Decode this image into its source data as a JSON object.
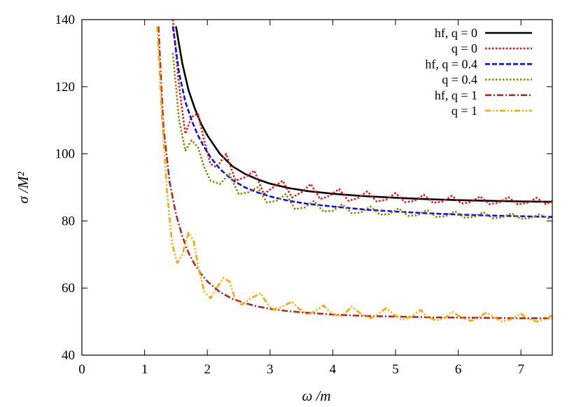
{
  "chart_data": {
    "type": "line",
    "title": "",
    "xlabel": "ω /m",
    "ylabel": "σ /M²",
    "xlim": [
      0,
      7.5
    ],
    "ylim": [
      40,
      140
    ],
    "xticks": [
      0,
      1,
      2,
      3,
      4,
      5,
      6,
      7
    ],
    "xtick_labels": [
      "0",
      "1",
      "2",
      "3",
      "4",
      "5",
      "6",
      "7"
    ],
    "yticks": [
      40,
      60,
      80,
      100,
      120,
      140
    ],
    "ytick_labels": [
      "40",
      "60",
      "80",
      "100",
      "120",
      "140"
    ],
    "grid": false,
    "legend_position": "top-right",
    "series": [
      {
        "name": "hf, q = 0",
        "color": "#000000",
        "style": "solid",
        "x": [
          1.5,
          1.6,
          1.7,
          1.8,
          1.9,
          2.0,
          2.2,
          2.4,
          2.6,
          2.8,
          3.0,
          3.3,
          3.6,
          4.0,
          4.5,
          5.0,
          5.5,
          6.0,
          6.5,
          7.0,
          7.5
        ],
        "y": [
          138,
          127,
          119,
          113.5,
          109,
          105.5,
          100,
          96.3,
          94,
          92.4,
          91.1,
          89.8,
          88.9,
          88.1,
          87.4,
          86.9,
          86.5,
          86.2,
          86,
          85.8,
          85.7
        ]
      },
      {
        "name": "q = 0",
        "color": "#ee1111",
        "style": "dotted",
        "x": [
          1.45,
          1.55,
          1.65,
          1.75,
          1.85,
          1.95,
          2.05,
          2.15,
          2.3,
          2.45,
          2.6,
          2.75,
          2.9,
          3.05,
          3.2,
          3.35,
          3.5,
          3.65,
          3.8,
          3.95,
          4.1,
          4.25,
          4.4,
          4.55,
          4.7,
          4.85,
          5.0,
          5.15,
          5.3,
          5.45,
          5.6,
          5.75,
          5.9,
          6.05,
          6.2,
          6.35,
          6.5,
          6.65,
          6.8,
          6.95,
          7.1,
          7.25,
          7.4,
          7.5
        ],
        "y": [
          140,
          120,
          106,
          111,
          112,
          104,
          97,
          96,
          100,
          92,
          93,
          95,
          88,
          90,
          92,
          87,
          88.5,
          91,
          86.5,
          87.5,
          89.5,
          86,
          86.8,
          88.8,
          85.8,
          86.3,
          88.3,
          85.6,
          86,
          87.8,
          85.4,
          85.8,
          87.5,
          85.2,
          85.6,
          87.3,
          85,
          85.5,
          87.1,
          84.9,
          85.4,
          86.9,
          85,
          86
        ]
      },
      {
        "name": "hf, q = 0.4",
        "color": "#1111dd",
        "style": "dashed",
        "x": [
          1.45,
          1.55,
          1.65,
          1.75,
          1.85,
          1.95,
          2.05,
          2.2,
          2.4,
          2.6,
          2.8,
          3.0,
          3.3,
          3.6,
          4.0,
          4.5,
          5.0,
          5.5,
          6.0,
          6.5,
          7.0,
          7.5
        ],
        "y": [
          138,
          124,
          115.5,
          110,
          105.5,
          102,
          99,
          95.5,
          92.2,
          90,
          88.5,
          87.3,
          86,
          85.1,
          84.3,
          83.4,
          82.8,
          82.3,
          81.9,
          81.6,
          81.4,
          81.2
        ]
      },
      {
        "name": "q = 0.4",
        "color": "#888800",
        "style": "dotted",
        "x": [
          1.45,
          1.55,
          1.65,
          1.75,
          1.85,
          1.95,
          2.05,
          2.2,
          2.35,
          2.5,
          2.65,
          2.8,
          2.95,
          3.1,
          3.25,
          3.4,
          3.55,
          3.7,
          3.85,
          4.0,
          4.15,
          4.3,
          4.45,
          4.6,
          4.75,
          4.9,
          5.05,
          5.2,
          5.35,
          5.5,
          5.65,
          5.8,
          5.95,
          6.1,
          6.25,
          6.4,
          6.55,
          6.7,
          6.85,
          7.0,
          7.15,
          7.3,
          7.45
        ],
        "y": [
          130,
          110,
          101,
          104,
          102,
          96,
          92,
          91,
          94,
          88,
          88.5,
          90,
          85.5,
          86,
          88,
          83.5,
          84,
          86,
          82.8,
          83,
          85,
          82.3,
          82.5,
          84.3,
          81.9,
          82,
          83.8,
          81.5,
          81.7,
          83.3,
          81.2,
          81.4,
          82.9,
          81,
          81.2,
          82.6,
          80.8,
          81,
          82.3,
          80.6,
          80.9,
          82,
          80.6
        ]
      },
      {
        "name": "hf, q = 1",
        "color": "#a52a2a",
        "style": "dashdot",
        "x": [
          1.22,
          1.3,
          1.4,
          1.5,
          1.6,
          1.7,
          1.8,
          1.9,
          2.0,
          2.2,
          2.4,
          2.6,
          2.8,
          3.0,
          3.3,
          3.6,
          4.0,
          4.5,
          5.0,
          5.5,
          6.0,
          6.5,
          7.0,
          7.5
        ],
        "y": [
          138,
          108,
          91.5,
          82,
          75.5,
          70.5,
          67,
          64.2,
          62,
          58.8,
          56.8,
          55.5,
          54.5,
          53.8,
          53.1,
          52.6,
          52.1,
          51.7,
          51.5,
          51.3,
          51.2,
          51.1,
          51,
          51
        ]
      },
      {
        "name": "q = 1",
        "color": "#ffa500",
        "style": "dashdotdot",
        "x": [
          1.2,
          1.28,
          1.36,
          1.44,
          1.52,
          1.6,
          1.7,
          1.78,
          1.86,
          1.95,
          2.05,
          2.15,
          2.25,
          2.35,
          2.45,
          2.55,
          2.7,
          2.85,
          2.95,
          3.05,
          3.2,
          3.35,
          3.45,
          3.6,
          3.75,
          3.85,
          3.95,
          4.1,
          4.2,
          4.3,
          4.45,
          4.6,
          4.7,
          4.85,
          5.0,
          5.1,
          5.25,
          5.4,
          5.5,
          5.65,
          5.8,
          5.9,
          6.05,
          6.2,
          6.3,
          6.45,
          6.6,
          6.7,
          6.85,
          7.0,
          7.1,
          7.25,
          7.4,
          7.5
        ],
        "y": [
          138,
          110,
          88,
          73,
          67.5,
          70,
          76.5,
          74,
          66,
          59,
          57,
          60,
          63,
          62,
          56.5,
          55,
          57,
          58.5,
          55.5,
          53.5,
          54.5,
          56,
          54,
          52,
          53.5,
          54.8,
          53,
          51.5,
          52.5,
          54.5,
          52.3,
          51,
          52,
          54,
          51.8,
          50.5,
          51.5,
          53.5,
          51.5,
          50.3,
          51.2,
          53,
          51.2,
          50.2,
          51,
          52.7,
          51,
          50,
          50.8,
          52.4,
          50.9,
          50,
          50.7,
          52
        ]
      }
    ]
  }
}
